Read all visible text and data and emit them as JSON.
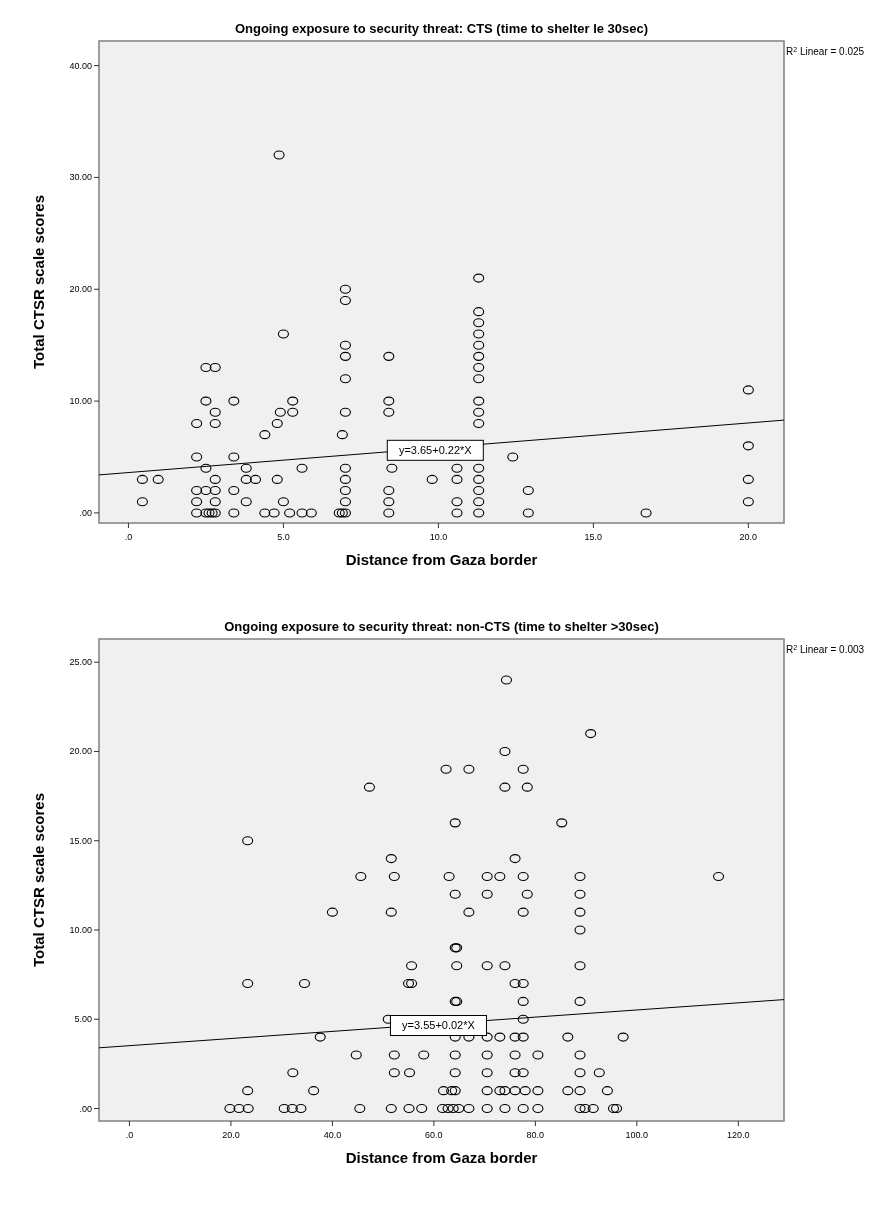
{
  "chart_data": [
    {
      "type": "scatter",
      "title": "Ongoing exposure to security threat: CTS (time to shelter le 30sec)",
      "xlabel": "Distance from Gaza border",
      "ylabel": "Total CTSR scale scores",
      "annotations": [
        "R$^{2}$ Linear = 0.025",
        {
          "text": "y=3.65+0.22*X",
          "x": 9.9,
          "y": 5.6
        }
      ],
      "xlim": [
        -0.95,
        21.15
      ],
      "ylim": [
        -0.9,
        42.2
      ],
      "xticks": [
        {
          "value": 0,
          "label": ".0"
        },
        {
          "value": 5,
          "label": "5.0"
        },
        {
          "value": 10,
          "label": "10.0"
        },
        {
          "value": 15,
          "label": "15.0"
        },
        {
          "value": 20,
          "label": "20.0"
        }
      ],
      "yticks": [
        {
          "value": 0,
          "label": ".00"
        },
        {
          "value": 10,
          "label": "10.00"
        },
        {
          "value": 20,
          "label": "20.00"
        },
        {
          "value": 30,
          "label": "30.00"
        },
        {
          "value": 40,
          "label": "40.00"
        }
      ],
      "series": [
        {
          "marker": "circle",
          "color": "#000000",
          "x": [
            2.2,
            2.5,
            2.6,
            2.7,
            2.8,
            3.4,
            4.4,
            4.7,
            5.2,
            5.6,
            5.9,
            6.8,
            6.9,
            7.0,
            8.4,
            10.6,
            11.3,
            12.9,
            16.7,
            0.45,
            2.2,
            2.8,
            3.8,
            5.0,
            7.0,
            8.4,
            10.6,
            11.3,
            20.0,
            2.2,
            2.5,
            2.8,
            3.4,
            8.4,
            7.0,
            11.3,
            12.9,
            0.45,
            0.96,
            2.8,
            3.8,
            4.1,
            4.8,
            7.0,
            9.8,
            10.6,
            11.3,
            20.0,
            2.5,
            3.8,
            5.6,
            7.0,
            8.5,
            10.6,
            11.3,
            2.2,
            3.4,
            12.4,
            20.0,
            4.4,
            6.9,
            2.2,
            2.8,
            4.8,
            11.3,
            2.8,
            4.9,
            5.3,
            7.0,
            8.4,
            11.3,
            2.5,
            3.4,
            5.3,
            8.4,
            11.3,
            20.0,
            7.0,
            11.3,
            2.5,
            2.8,
            11.3,
            7.0,
            8.4,
            11.3,
            7.0,
            11.3,
            5.0,
            11.3,
            11.3,
            11.3,
            7.0,
            7.0,
            11.3,
            4.86
          ],
          "values": [
            0,
            0,
            0,
            0,
            0,
            0,
            0,
            0,
            0,
            0,
            0,
            0,
            0,
            0,
            0,
            0,
            0,
            0,
            0,
            1,
            1,
            1,
            1,
            1,
            1,
            1,
            1,
            1,
            1,
            2,
            2,
            2,
            2,
            2,
            2,
            2,
            2,
            3,
            3,
            3,
            3,
            3,
            3,
            3,
            3,
            3,
            3,
            3,
            4,
            4,
            4,
            4,
            4,
            4,
            4,
            5,
            5,
            5,
            6,
            7,
            7,
            8,
            8,
            8,
            8,
            9,
            9,
            9,
            9,
            9,
            9,
            10,
            10,
            10,
            10,
            10,
            11,
            12,
            12,
            13,
            13,
            13,
            14,
            14,
            14,
            15,
            15,
            16,
            16,
            17,
            18,
            19,
            20,
            21,
            32
          ]
        },
        {
          "type": "line",
          "marker": "none",
          "color": "#000000",
          "x": [
            -0.95,
            21.15
          ],
          "values": [
            3.4,
            8.3
          ]
        }
      ]
    },
    {
      "type": "scatter",
      "title": "Ongoing exposure to security threat: non-CTS (time to shelter >30sec)",
      "xlabel": "Distance from Gaza border",
      "ylabel": "Total CTSR scale scores",
      "annotations": [
        "R$^{2}$ Linear = 0.003",
        {
          "text": "y=3.55+0.02*X",
          "x": 60.9,
          "y": 4.65
        }
      ],
      "xlim": [
        -6,
        129
      ],
      "ylim": [
        -0.7,
        26.3
      ],
      "xticks": [
        {
          "value": 0,
          "label": ".0"
        },
        {
          "value": 20,
          "label": "20.0"
        },
        {
          "value": 40,
          "label": "40.0"
        },
        {
          "value": 60,
          "label": "60.0"
        },
        {
          "value": 80,
          "label": "80.0"
        },
        {
          "value": 100,
          "label": "100.0"
        },
        {
          "value": 120,
          "label": "120.0"
        }
      ],
      "yticks": [
        {
          "value": 0,
          "label": ".00"
        },
        {
          "value": 5,
          "label": "5.00"
        },
        {
          "value": 10,
          "label": "10.00"
        },
        {
          "value": 15,
          "label": "15.00"
        },
        {
          "value": 20,
          "label": "20.00"
        },
        {
          "value": 25,
          "label": "25.00"
        }
      ],
      "series": [
        {
          "marker": "circle",
          "color": "#000000",
          "x": [
            74.3,
            90.9,
            74.0,
            62.4,
            66.9,
            77.6,
            47.3,
            74.0,
            78.4,
            64.2,
            85.2,
            23.3,
            51.6,
            76.0,
            45.6,
            52.2,
            63.0,
            70.5,
            73.0,
            77.6,
            88.8,
            116.1,
            64.2,
            70.5,
            78.4,
            88.8,
            40.0,
            51.6,
            66.9,
            77.6,
            88.8,
            88.8,
            64.2,
            64.5,
            55.6,
            64.5,
            70.5,
            74.0,
            88.8,
            23.3,
            34.5,
            55.0,
            55.6,
            76.0,
            77.6,
            64.2,
            64.5,
            77.6,
            88.8,
            51.0,
            77.6,
            37.6,
            64.2,
            66.9,
            70.5,
            73.0,
            76.0,
            77.6,
            86.4,
            97.3,
            44.7,
            52.2,
            58.0,
            64.2,
            70.5,
            76.0,
            80.5,
            88.8,
            32.2,
            52.2,
            55.2,
            64.2,
            70.5,
            76.0,
            77.6,
            88.8,
            92.6,
            23.3,
            36.3,
            61.9,
            64.2,
            63.5,
            70.5,
            73.0,
            74.0,
            76.0,
            78.0,
            80.5,
            86.4,
            88.8,
            94.2,
            19.8,
            21.6,
            23.4,
            30.5,
            32.1,
            33.8,
            45.4,
            51.6,
            55.1,
            57.6,
            61.7,
            62.8,
            63.8,
            64.9,
            66.9,
            70.5,
            74.0,
            77.6,
            80.5,
            88.8,
            89.8,
            91.4,
            95.4,
            96.0
          ],
          "values": [
            24,
            21,
            20,
            19,
            19,
            19,
            18,
            18,
            18,
            16,
            16,
            15,
            14,
            14,
            13,
            13,
            13,
            13,
            13,
            13,
            13,
            13,
            12,
            12,
            12,
            12,
            11,
            11,
            11,
            11,
            11,
            10,
            9,
            9,
            8,
            8,
            8,
            8,
            8,
            7,
            7,
            7,
            7,
            7,
            7,
            6,
            6,
            6,
            6,
            5,
            5,
            4,
            4,
            4,
            4,
            4,
            4,
            4,
            4,
            4,
            3,
            3,
            3,
            3,
            3,
            3,
            3,
            3,
            2,
            2,
            2,
            2,
            2,
            2,
            2,
            2,
            2,
            1,
            1,
            1,
            1,
            1,
            1,
            1,
            1,
            1,
            1,
            1,
            1,
            1,
            1,
            0,
            0,
            0,
            0,
            0,
            0,
            0,
            0,
            0,
            0,
            0,
            0,
            0,
            0,
            0,
            0,
            0,
            0,
            0,
            0,
            0,
            0,
            0,
            0
          ]
        },
        {
          "type": "line",
          "marker": "none",
          "color": "#000000",
          "x": [
            -6,
            129
          ],
          "values": [
            3.4,
            6.1
          ]
        }
      ]
    }
  ]
}
